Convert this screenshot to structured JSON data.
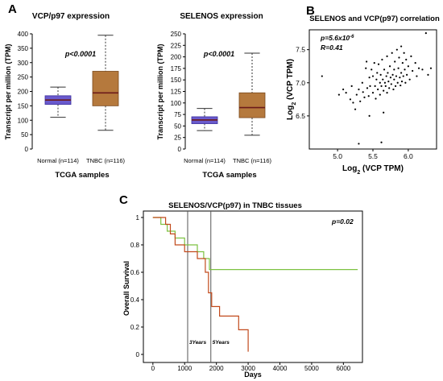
{
  "panel_labels": {
    "a": "A",
    "b": "B",
    "c": "C"
  },
  "colors": {
    "vcp_box": "#6a5acd",
    "vcp_box_edge": "#3b2f9e",
    "selenos_box": "#b5793d",
    "selenos_box_edge": "#7a4a1e",
    "median": "#6b1a1a",
    "survival_green": "#7dc242",
    "survival_red": "#c24a1c",
    "box_normal_selenos": "#6a5acd"
  },
  "panelA1": {
    "title": "VCP/p97 expression",
    "ylabel": "Transcript per million (TPM)",
    "xlabel": "TCGA samples",
    "pvalue": "p<0.0001",
    "yticks": [
      "0",
      "50",
      "100",
      "150",
      "200",
      "250",
      "300",
      "350",
      "400"
    ]
  },
  "panelA2": {
    "title": "SELENOS expression",
    "ylabel": "Transcript per million (TPM)",
    "xlabel": "TCGA samples",
    "pvalue": "p<0.0001",
    "yticks": [
      "0",
      "25",
      "50",
      "75",
      "100",
      "125",
      "150",
      "175",
      "200",
      "225",
      "250"
    ]
  },
  "panelB": {
    "title": "SELENOS and VCP(p97) correlation",
    "pvalue": "p=5.6x10",
    "pvalue_exp": "-6",
    "r_value": "R=0.41",
    "xlabel_main": "Log",
    "xlabel_sub": "2",
    "xlabel_rest": " (VCP TPM)",
    "ylabel_main": "Log",
    "ylabel_sub": "2",
    "ylabel_rest": " (VCP TPM)",
    "xticks": [
      "5.0",
      "5.5",
      "6.0"
    ],
    "yticks": [
      "6.5",
      "7.0",
      "7.5"
    ]
  },
  "panelC": {
    "title": "SELENOS/VCP(p97) in TNBC tissues",
    "ylabel": "Overall Survival",
    "xlabel": "Days",
    "pvalue": "p=0.02",
    "vline1_label": "3Years",
    "vline2_label": "5Years",
    "xticks": [
      "0",
      "1000",
      "2000",
      "3000",
      "4000",
      "5000",
      "6000"
    ],
    "yticks": [
      "0",
      "0.2",
      "0.4",
      "0.6",
      "0.8",
      "1"
    ]
  },
  "chart_data": [
    {
      "type": "box",
      "title": "VCP/p97 expression",
      "xlabel": "TCGA samples",
      "ylabel": "Transcript per million (TPM)",
      "ylim": [
        0,
        400
      ],
      "categories": [
        "Normal (n=114)",
        "TNBC (n=116)"
      ],
      "boxes": [
        {
          "name": "Normal (n=114)",
          "min": 110,
          "q1": 155,
          "median": 170,
          "q3": 185,
          "max": 215
        },
        {
          "name": "TNBC (n=116)",
          "min": 65,
          "q1": 150,
          "median": 195,
          "q3": 270,
          "max": 395
        }
      ],
      "annotation": "p<0.0001"
    },
    {
      "type": "box",
      "title": "SELENOS expression",
      "xlabel": "TCGA samples",
      "ylabel": "Transcript per million (TPM)",
      "ylim": [
        0,
        250
      ],
      "categories": [
        "Normal (n=114)",
        "TNBC (n=116)"
      ],
      "boxes": [
        {
          "name": "Normal (n=114)",
          "min": 40,
          "q1": 55,
          "median": 63,
          "q3": 70,
          "max": 88
        },
        {
          "name": "TNBC (n=116)",
          "min": 30,
          "q1": 68,
          "median": 90,
          "q3": 122,
          "max": 208
        }
      ],
      "annotation": "p<0.0001"
    },
    {
      "type": "scatter",
      "title": "SELENOS and VCP(p97) correlation",
      "xlabel": "Log2 (VCP TPM)",
      "ylabel": "Log2 (VCP TPM)",
      "xlim": [
        4.6,
        6.4
      ],
      "ylim": [
        6.0,
        7.8
      ],
      "annotations": [
        "p=5.6x10-6",
        "R=0.41"
      ],
      "points": [
        [
          4.78,
          7.1
        ],
        [
          5.02,
          6.82
        ],
        [
          5.08,
          6.9
        ],
        [
          5.12,
          6.85
        ],
        [
          5.18,
          6.75
        ],
        [
          5.2,
          6.95
        ],
        [
          5.22,
          6.7
        ],
        [
          5.25,
          6.6
        ],
        [
          5.27,
          6.82
        ],
        [
          5.3,
          6.9
        ],
        [
          5.32,
          6.72
        ],
        [
          5.35,
          7.0
        ],
        [
          5.36,
          6.86
        ],
        [
          5.38,
          6.78
        ],
        [
          5.4,
          7.22
        ],
        [
          5.41,
          7.32
        ],
        [
          5.42,
          6.92
        ],
        [
          5.44,
          6.8
        ],
        [
          5.45,
          7.08
        ],
        [
          5.46,
          6.95
        ],
        [
          5.48,
          7.2
        ],
        [
          5.5,
          6.85
        ],
        [
          5.5,
          7.1
        ],
        [
          5.52,
          7.3
        ],
        [
          5.53,
          6.95
        ],
        [
          5.54,
          6.76
        ],
        [
          5.55,
          7.05
        ],
        [
          5.56,
          7.15
        ],
        [
          5.57,
          6.9
        ],
        [
          5.58,
          7.28
        ],
        [
          5.6,
          7.0
        ],
        [
          5.6,
          6.82
        ],
        [
          5.61,
          7.12
        ],
        [
          5.62,
          6.95
        ],
        [
          5.63,
          7.35
        ],
        [
          5.64,
          7.05
        ],
        [
          5.65,
          6.88
        ],
        [
          5.66,
          7.2
        ],
        [
          5.67,
          7.0
        ],
        [
          5.68,
          6.95
        ],
        [
          5.69,
          7.1
        ],
        [
          5.7,
          7.4
        ],
        [
          5.7,
          6.85
        ],
        [
          5.71,
          7.15
        ],
        [
          5.72,
          7.02
        ],
        [
          5.73,
          6.92
        ],
        [
          5.74,
          7.25
        ],
        [
          5.75,
          7.08
        ],
        [
          5.76,
          6.98
        ],
        [
          5.77,
          7.45
        ],
        [
          5.78,
          7.12
        ],
        [
          5.79,
          6.9
        ],
        [
          5.8,
          7.2
        ],
        [
          5.8,
          7.05
        ],
        [
          5.81,
          7.32
        ],
        [
          5.82,
          6.95
        ],
        [
          5.83,
          7.1
        ],
        [
          5.84,
          7.5
        ],
        [
          5.85,
          7.0
        ],
        [
          5.86,
          7.22
        ],
        [
          5.87,
          7.38
        ],
        [
          5.88,
          7.08
        ],
        [
          5.89,
          6.96
        ],
        [
          5.9,
          7.15
        ],
        [
          5.9,
          7.55
        ],
        [
          5.91,
          7.02
        ],
        [
          5.92,
          7.3
        ],
        [
          5.93,
          7.1
        ],
        [
          5.94,
          7.45
        ],
        [
          5.95,
          7.2
        ],
        [
          5.96,
          7.0
        ],
        [
          5.97,
          7.35
        ],
        [
          5.98,
          7.12
        ],
        [
          6.0,
          7.25
        ],
        [
          6.02,
          7.05
        ],
        [
          6.04,
          7.4
        ],
        [
          6.06,
          7.18
        ],
        [
          6.1,
          7.3
        ],
        [
          6.12,
          7.1
        ],
        [
          6.15,
          7.22
        ],
        [
          6.2,
          7.2
        ],
        [
          6.25,
          7.75
        ],
        [
          6.28,
          7.12
        ],
        [
          6.32,
          7.22
        ],
        [
          5.65,
          6.55
        ],
        [
          5.45,
          6.5
        ],
        [
          5.62,
          6.1
        ],
        [
          5.3,
          6.08
        ]
      ]
    },
    {
      "type": "line",
      "title": "SELENOS/VCP(p97) in TNBC tissues",
      "xlabel": "Days",
      "ylabel": "Overall Survival",
      "xlim": [
        -300,
        6600
      ],
      "ylim": [
        0,
        1
      ],
      "annotation": "p=0.02",
      "vlines": [
        {
          "x": 1095,
          "label": "3Years"
        },
        {
          "x": 1825,
          "label": "5Years"
        }
      ],
      "series": [
        {
          "color": "#7dc242",
          "x": [
            0,
            250,
            250,
            450,
            450,
            700,
            700,
            1000,
            1000,
            1400,
            1400,
            1600,
            1600,
            1780,
            1780,
            6450
          ],
          "y": [
            1.0,
            1.0,
            0.95,
            0.95,
            0.9,
            0.9,
            0.85,
            0.85,
            0.8,
            0.8,
            0.75,
            0.75,
            0.7,
            0.7,
            0.62,
            0.62
          ]
        },
        {
          "color": "#c24a1c",
          "x": [
            0,
            400,
            400,
            550,
            550,
            700,
            700,
            1000,
            1000,
            1400,
            1400,
            1650,
            1650,
            1750,
            1750,
            1850,
            1850,
            2100,
            2100,
            2700,
            2700,
            3000,
            3000
          ],
          "y": [
            1.0,
            1.0,
            0.95,
            0.95,
            0.88,
            0.88,
            0.8,
            0.8,
            0.75,
            0.75,
            0.7,
            0.7,
            0.6,
            0.6,
            0.45,
            0.45,
            0.35,
            0.35,
            0.28,
            0.28,
            0.18,
            0.18,
            0.02
          ]
        }
      ]
    }
  ]
}
